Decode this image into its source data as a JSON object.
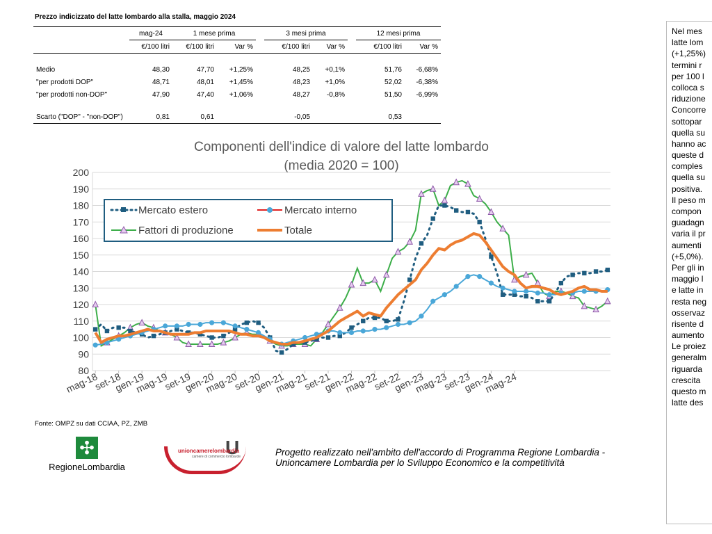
{
  "table": {
    "title": "Prezzo indicizzato del latte lombardo alla stalla, maggio 2024",
    "headers_top": [
      "mag-24",
      "1 mese prima",
      "3 mesi prima",
      "12 mesi prima"
    ],
    "headers_sub": [
      "€/100 litri",
      "€/100 litri",
      "Var %",
      "€/100 litri",
      "Var %",
      "€/100 litri",
      "Var %"
    ],
    "rows": [
      {
        "label": "Medio",
        "cells": [
          "48,30",
          "47,70",
          "+1,25%",
          "48,25",
          "+0,1%",
          "51,76",
          "-6,68%"
        ]
      },
      {
        "label": "\"per prodotti DOP\"",
        "cells": [
          "48,71",
          "48,01",
          "+1,45%",
          "48,23",
          "+1,0%",
          "52,02",
          "-6,38%"
        ]
      },
      {
        "label": "\"per prodotti non-DOP\"",
        "cells": [
          "47,90",
          "47,40",
          "+1,06%",
          "48,27",
          "-0,8%",
          "51,50",
          "-6,99%"
        ]
      }
    ],
    "scarto": {
      "label": "Scarto (\"DOP\" - \"non-DOP\")",
      "cells": [
        "0,81",
        "0,61",
        "",
        "-0,05",
        "",
        "0,53",
        ""
      ]
    }
  },
  "chart_data": {
    "type": "line",
    "title": "Componenti dell'indice di valore del latte lombardo",
    "subtitle": "(media 2020 = 100)",
    "xlabel": "",
    "ylabel": "",
    "ylim": [
      80,
      200
    ],
    "yticks": [
      80,
      90,
      100,
      110,
      120,
      130,
      140,
      150,
      160,
      170,
      180,
      190,
      200
    ],
    "x_tick_labels": [
      "mag-18",
      "set-18",
      "gen-19",
      "mag-19",
      "set-19",
      "gen-20",
      "mag-20",
      "set-20",
      "gen-21",
      "mag-21",
      "set-21",
      "gen-22",
      "mag-22",
      "set-22",
      "gen-23",
      "mag-23",
      "set-23",
      "gen-24",
      "mag-24"
    ],
    "x_tick_step_months": 4,
    "grid": true,
    "legend_placement": "top-left",
    "series": [
      {
        "name": "Mercato estero",
        "color": "#1f5d80",
        "style": "dotted-square",
        "values": [
          105,
          108,
          104,
          106,
          106,
          106,
          104,
          103,
          102,
          100,
          101,
          102,
          103,
          104,
          105,
          104,
          103,
          103,
          102,
          101,
          100,
          100,
          101,
          103,
          105,
          108,
          109,
          110,
          109,
          106,
          100,
          92,
          91,
          93,
          96,
          97,
          97,
          98,
          99,
          100,
          100,
          101,
          101,
          103,
          106,
          108,
          110,
          112,
          112,
          112,
          110,
          110,
          111,
          122,
          135,
          148,
          157,
          162,
          172,
          180,
          180,
          179,
          177,
          176,
          176,
          175,
          170,
          160,
          149,
          139,
          126,
          126,
          126,
          125,
          125,
          124,
          122,
          122,
          122,
          127,
          133,
          137,
          138,
          139,
          139,
          139,
          140,
          140,
          141
        ]
      },
      {
        "name": "Mercato interno",
        "color": "#4aa7d8",
        "style": "line-circle",
        "values": [
          95.5,
          96,
          97,
          98,
          99,
          100,
          101,
          102,
          103,
          104,
          105,
          106,
          107,
          107,
          107,
          107,
          108,
          108,
          108,
          109,
          109,
          109,
          109,
          108,
          107,
          106,
          105,
          104,
          103,
          101,
          99,
          97,
          96,
          97,
          98,
          99,
          100,
          101,
          102,
          103,
          104,
          104,
          103,
          103,
          103,
          104,
          104,
          104,
          105,
          105,
          106,
          107,
          108,
          108,
          109,
          110,
          113,
          117,
          122,
          124,
          126,
          128,
          131,
          134,
          137,
          138,
          137,
          135,
          133,
          131,
          130,
          129,
          128,
          128,
          128,
          128,
          127,
          127,
          126,
          126,
          127,
          127,
          127,
          128,
          128,
          128,
          128,
          128,
          129
        ]
      },
      {
        "name": "Fattori di produzione",
        "color": "#3cae49",
        "style": "line-triangle",
        "values": [
          120,
          95,
          97,
          99,
          101,
          103,
          106,
          108,
          109,
          107,
          106,
          104,
          103,
          102,
          100,
          97,
          96,
          96,
          96,
          96,
          96,
          96,
          97,
          98,
          100,
          102,
          103,
          102,
          102,
          100,
          98,
          96,
          95,
          95,
          96,
          96,
          96,
          95,
          99,
          103,
          108,
          113,
          118,
          124,
          132,
          142,
          133,
          133,
          135,
          128,
          138,
          148,
          152,
          154,
          158,
          165,
          187,
          189,
          190,
          180,
          183,
          192,
          194,
          195,
          193,
          186,
          184,
          181,
          176,
          170,
          166,
          162,
          135,
          137,
          138,
          139,
          133,
          127,
          125,
          128,
          128,
          127,
          125,
          124,
          119,
          118,
          117,
          119,
          122
        ]
      },
      {
        "name": "Totale",
        "color": "#ed7d31",
        "style": "thick-line",
        "values": [
          103,
          97,
          99,
          100,
          101,
          101,
          102,
          103,
          104,
          105,
          104,
          104,
          103,
          102,
          102,
          102,
          102,
          103,
          103,
          104,
          104,
          104,
          104,
          104,
          103,
          102,
          102,
          101,
          101,
          100,
          98,
          97,
          96,
          96,
          97,
          97,
          98,
          99,
          100,
          102,
          104,
          107,
          110,
          112,
          114,
          116,
          113,
          115,
          114,
          113,
          118,
          122,
          126,
          129,
          132,
          135,
          141,
          145,
          150,
          154,
          153,
          156,
          158,
          159,
          161,
          163,
          162,
          158,
          153,
          148,
          143,
          140,
          138,
          133,
          130,
          131,
          131,
          130,
          129,
          127,
          126,
          127,
          128,
          130,
          131,
          129,
          129,
          128,
          128
        ]
      }
    ]
  },
  "source": "Fonte: OMPZ su dati CCIAA, PZ, ZMB",
  "logos": {
    "lombardia": "RegioneLombardia",
    "unioncamere": "unioncamerelombardia",
    "unioncamere_sub": "camere di commercio lombarde"
  },
  "project_note": {
    "line1": "Progetto realizzato nell'ambito dell'accordo di Programma Regione Lombardia  -",
    "line2": "Unioncamere Lombardia per lo Sviluppo Economico e la competitività"
  },
  "side_text": [
    "Nel mes",
    "latte lom",
    "(+1,25%)",
    "termini r",
    "per 100 l",
    "colloca s",
    "riduzione",
    "Concorre",
    "sottopar",
    "quella su",
    "hanno ac",
    "queste d",
    "comples",
    "quella su",
    "positiva.",
    "Il peso m",
    "compon",
    "guadagn",
    "varia il pr",
    "aumenti",
    "(+5,0%).",
    "Per gli in",
    "maggio l",
    "e latte in",
    "resta neg",
    "osservaz",
    "risente d",
    "aumento",
    "Le proiez",
    "generalm",
    "riguarda",
    "crescita",
    "questo m",
    "latte des"
  ],
  "colors": {
    "axis": "#d9d9d9",
    "legend_border": "#1f5d80"
  }
}
